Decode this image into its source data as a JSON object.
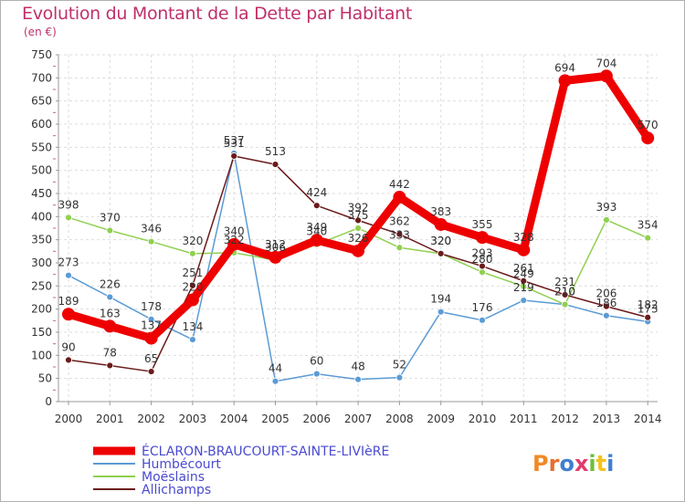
{
  "chart_data": {
    "type": "line",
    "title": "Evolution du Montant de la Dette par Habitant",
    "subtitle": "(en €)",
    "x": [
      "2000",
      "2001",
      "2002",
      "2003",
      "2004",
      "2005",
      "2006",
      "2007",
      "2008",
      "2009",
      "2010",
      "2011",
      "2012",
      "2013",
      "2014"
    ],
    "ylim": [
      0,
      750
    ],
    "yticks": [
      0,
      50,
      100,
      150,
      200,
      250,
      300,
      350,
      400,
      450,
      500,
      550,
      600,
      650,
      700,
      750
    ],
    "grid": true,
    "legend": "bottom-left",
    "series": [
      {
        "name": "ÉCLARON-BRAUCOURT-SAINTE-LIVIèRE",
        "color": "#ee0000",
        "values": [
          189,
          163,
          137,
          220,
          340,
          312,
          349,
          326,
          442,
          383,
          355,
          328,
          694,
          704,
          570
        ]
      },
      {
        "name": "Humbécourt",
        "color": "#5b9bd5",
        "values": [
          273,
          226,
          178,
          134,
          537,
          44,
          60,
          48,
          52,
          194,
          176,
          219,
          210,
          186,
          173
        ]
      },
      {
        "name": "Moëslains",
        "color": "#90d050",
        "values": [
          398,
          370,
          346,
          320,
          322,
          306,
          340,
          375,
          333,
          320,
          280,
          249,
          210,
          393,
          354
        ]
      },
      {
        "name": "Allichamps",
        "color": "#6b1a1a",
        "values": [
          90,
          78,
          65,
          251,
          531,
          513,
          424,
          392,
          362,
          320,
          293,
          261,
          231,
          206,
          182
        ]
      }
    ],
    "labels": [
      [
        "189",
        "163",
        "137",
        "220",
        "340",
        "312",
        "349",
        "326",
        "442",
        "383",
        "355",
        "328",
        "694",
        "704",
        "570"
      ],
      [
        "273",
        "226",
        "178",
        "134",
        "537",
        "44",
        "60",
        "48",
        "52",
        "194",
        "176",
        "219",
        "210",
        "186",
        "173"
      ],
      [
        "398",
        "370",
        "346",
        "320",
        "322",
        "306",
        "340",
        "375",
        "333",
        "320",
        "280",
        "249",
        "210",
        "393",
        "354"
      ],
      [
        "90",
        "78",
        "65",
        "251",
        "531",
        "513",
        "424",
        "392",
        "362",
        "320",
        "293",
        "261",
        "231",
        "206",
        "182"
      ]
    ]
  },
  "logo": {
    "text": "Proxiti"
  }
}
